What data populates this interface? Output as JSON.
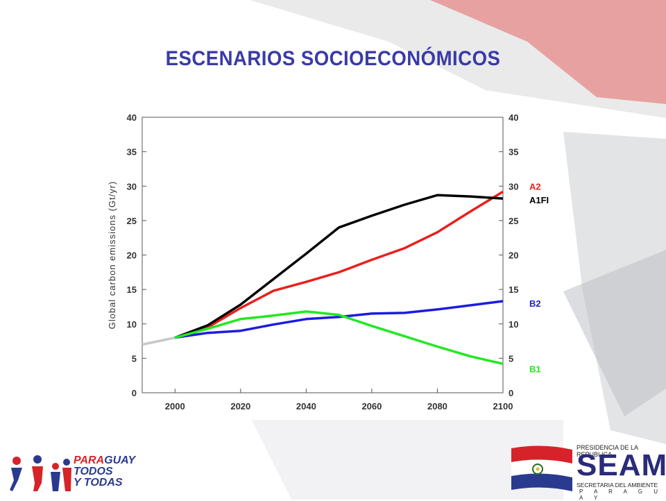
{
  "slide": {
    "title": "ESCENARIOS SOCIOECONÓMICOS"
  },
  "chart_data": {
    "type": "line",
    "title": "",
    "xlabel": "",
    "ylabel": "Global carbon emissions (Gt/yr)",
    "xlim": [
      1990,
      2100
    ],
    "ylim": [
      0,
      40
    ],
    "x_ticks": [
      2000,
      2020,
      2040,
      2060,
      2080,
      2100
    ],
    "y_ticks": [
      0,
      5,
      10,
      15,
      20,
      25,
      30,
      35,
      40
    ],
    "grid": false,
    "series": [
      {
        "name": "historical",
        "color": "#c8c8c8",
        "x": [
          1990,
          2000
        ],
        "y": [
          7.0,
          8.0
        ]
      },
      {
        "name": "A2",
        "color": "#e8201c",
        "x": [
          2000,
          2010,
          2020,
          2030,
          2040,
          2050,
          2060,
          2070,
          2080,
          2090,
          2100
        ],
        "y": [
          8.0,
          9.5,
          12.3,
          14.8,
          16.1,
          17.5,
          19.3,
          21.0,
          23.3,
          26.3,
          29.2
        ]
      },
      {
        "name": "A1FI",
        "color": "#000000",
        "x": [
          2000,
          2010,
          2020,
          2030,
          2040,
          2050,
          2060,
          2070,
          2080,
          2090,
          2100
        ],
        "y": [
          8.0,
          9.8,
          12.8,
          16.5,
          20.2,
          24.0,
          25.7,
          27.3,
          28.7,
          28.5,
          28.2
        ]
      },
      {
        "name": "B2",
        "color": "#1c1ce0",
        "x": [
          2000,
          2010,
          2020,
          2030,
          2040,
          2050,
          2060,
          2070,
          2080,
          2090,
          2100
        ],
        "y": [
          8.0,
          8.7,
          9.0,
          9.9,
          10.7,
          11.0,
          11.5,
          11.6,
          12.1,
          12.7,
          13.3
        ]
      },
      {
        "name": "B1",
        "color": "#22e822",
        "x": [
          2000,
          2010,
          2020,
          2030,
          2040,
          2050,
          2060,
          2070,
          2080,
          2090,
          2100
        ],
        "y": [
          8.0,
          9.3,
          10.7,
          11.2,
          11.8,
          11.3,
          9.7,
          8.2,
          6.7,
          5.3,
          4.2
        ]
      }
    ],
    "labels": [
      {
        "text": "A2",
        "color": "#e8201c",
        "y": 30.0
      },
      {
        "text": "A1FI",
        "color": "#000000",
        "y": 28.0
      },
      {
        "text": "B2",
        "color": "#1c1ce0",
        "y": 13.0
      },
      {
        "text": "B1",
        "color": "#22e822",
        "y": 3.5
      }
    ]
  },
  "footer": {
    "left_logo": {
      "line1_a": "PARA",
      "line1_b": "GUAY",
      "line2": "TODOS",
      "line3": "Y TODAS",
      "colors": {
        "red": "#d6232a",
        "blue": "#2a3a8f"
      }
    },
    "right_logo": {
      "top": "PRESIDENCIA DE LA REPUBLICA",
      "name": "SEAM",
      "subtitle": "SECRETARIA DEL AMBIENTE",
      "country": "P A R A G U A Y",
      "colors": {
        "red": "#d6232a",
        "blue": "#2b2b7a"
      }
    }
  }
}
